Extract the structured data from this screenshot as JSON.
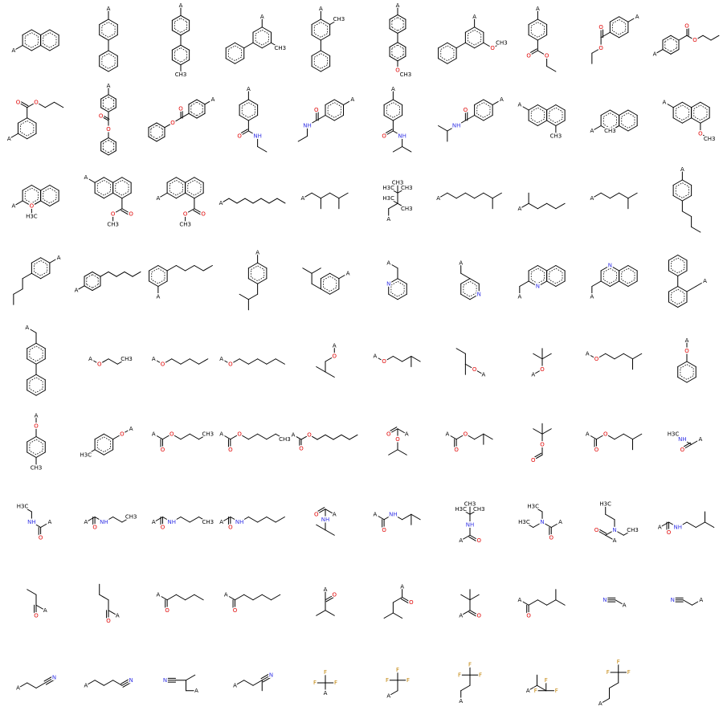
{
  "molecules": [
    {
      "labels": [
        "A"
      ]
    },
    {
      "labels": [
        "A"
      ]
    },
    {
      "labels": [
        "A",
        "CH3"
      ]
    },
    {
      "labels": [
        "A",
        "CH3"
      ]
    },
    {
      "labels": [
        "A",
        "CH3"
      ]
    },
    {
      "labels": [
        "A",
        "O",
        "CH3"
      ]
    },
    {
      "labels": [
        "A",
        "O",
        "CH3"
      ]
    },
    {
      "labels": [
        "A",
        "O",
        "O"
      ]
    },
    {
      "labels": [
        "A",
        "O",
        "O"
      ]
    },
    {
      "labels": [
        "A",
        "O",
        "O"
      ]
    },
    {
      "labels": [
        "A",
        "O",
        "O"
      ]
    },
    {
      "labels": [
        "A",
        "O",
        "O"
      ]
    },
    {
      "labels": [
        "A",
        "O",
        "O"
      ]
    },
    {
      "labels": [
        "A",
        "O",
        "NH"
      ]
    },
    {
      "labels": [
        "A",
        "O",
        "NH"
      ]
    },
    {
      "labels": [
        "A",
        "O",
        "NH"
      ]
    },
    {
      "labels": [
        "A",
        "O",
        "NH"
      ]
    },
    {
      "labels": [
        "A",
        "CH3"
      ]
    },
    {
      "labels": [
        "A",
        "CH3"
      ]
    },
    {
      "labels": [
        "A",
        "O",
        "CH3"
      ]
    },
    {
      "labels": [
        "A",
        "O",
        "H3C"
      ]
    },
    {
      "labels": [
        "A",
        "O",
        "O",
        "CH3"
      ]
    },
    {
      "labels": [
        "A",
        "O",
        "O",
        "CH3"
      ]
    },
    {
      "labels": [
        "A"
      ]
    },
    {
      "labels": [
        "A"
      ]
    },
    {
      "labels": [
        "A",
        "H3C",
        "CH3",
        "H3C",
        "CH3",
        "CH3"
      ]
    },
    {
      "labels": [
        "A"
      ]
    },
    {
      "labels": [
        "A"
      ]
    },
    {
      "labels": [
        "A"
      ]
    },
    {
      "labels": [
        "A"
      ]
    },
    {
      "labels": [
        "A"
      ]
    },
    {
      "labels": [
        "A"
      ]
    },
    {
      "labels": [
        "A"
      ]
    },
    {
      "labels": [
        "A"
      ]
    },
    {
      "labels": [
        "A"
      ]
    },
    {
      "labels": [
        "A",
        "N"
      ]
    },
    {
      "labels": [
        "A",
        "N"
      ]
    },
    {
      "labels": [
        "A",
        "N"
      ]
    },
    {
      "labels": [
        "A",
        "N"
      ]
    },
    {
      "labels": [
        "A"
      ]
    },
    {
      "labels": [
        "A"
      ]
    },
    {
      "labels": [
        "A",
        "O",
        "CH3"
      ]
    },
    {
      "labels": [
        "A",
        "O"
      ]
    },
    {
      "labels": [
        "A",
        "O"
      ]
    },
    {
      "labels": [
        "A",
        "O"
      ]
    },
    {
      "labels": [
        "A",
        "O"
      ]
    },
    {
      "labels": [
        "A",
        "O"
      ]
    },
    {
      "labels": [
        "A",
        "O"
      ]
    },
    {
      "labels": [
        "A",
        "O"
      ]
    },
    {
      "labels": [
        "A",
        "O"
      ]
    },
    {
      "labels": [
        "A",
        "O",
        "CH3"
      ]
    },
    {
      "labels": [
        "A",
        "O",
        "H3C"
      ]
    },
    {
      "labels": [
        "A",
        "O",
        "O",
        "CH3"
      ]
    },
    {
      "labels": [
        "A",
        "O",
        "O",
        "CH3"
      ]
    },
    {
      "labels": [
        "A",
        "O",
        "O"
      ]
    },
    {
      "labels": [
        "A",
        "O",
        "O"
      ]
    },
    {
      "labels": [
        "A",
        "O",
        "O"
      ]
    },
    {
      "labels": [
        "A",
        "O",
        "O"
      ]
    },
    {
      "labels": [
        "A",
        "O",
        "O"
      ]
    },
    {
      "labels": [
        "H3C",
        "NH",
        "O",
        "A"
      ]
    },
    {
      "labels": [
        "H3C",
        "NH",
        "O",
        "A"
      ]
    },
    {
      "labels": [
        "A",
        "O",
        "NH",
        "CH3"
      ]
    },
    {
      "labels": [
        "A",
        "O",
        "NH",
        "CH3"
      ]
    },
    {
      "labels": [
        "A",
        "O",
        "NH"
      ]
    },
    {
      "labels": [
        "A",
        "O",
        "NH"
      ]
    },
    {
      "labels": [
        "A",
        "O",
        "NH"
      ]
    },
    {
      "labels": [
        "A",
        "O",
        "NH",
        "H3C",
        "CH3",
        "CH3"
      ]
    },
    {
      "labels": [
        "H3C",
        "N",
        "H3C",
        "O",
        "A"
      ]
    },
    {
      "labels": [
        "H3C",
        "N",
        "CH3",
        "O",
        "A"
      ]
    },
    {
      "labels": [
        "A",
        "O",
        "NH"
      ]
    },
    {
      "labels": [
        "A",
        "O"
      ]
    },
    {
      "labels": [
        "A",
        "O"
      ]
    },
    {
      "labels": [
        "A",
        "O"
      ]
    },
    {
      "labels": [
        "A",
        "O"
      ]
    },
    {
      "labels": [
        "A",
        "O"
      ]
    },
    {
      "labels": [
        "A",
        "O"
      ]
    },
    {
      "labels": [
        "A",
        "O"
      ]
    },
    {
      "labels": [
        "A",
        "O"
      ]
    },
    {
      "labels": [
        "N",
        "A"
      ]
    },
    {
      "labels": [
        "N",
        "A"
      ]
    },
    {
      "labels": [
        "A",
        "N"
      ]
    },
    {
      "labels": [
        "A",
        "N"
      ]
    },
    {
      "labels": [
        "N",
        "A"
      ]
    },
    {
      "labels": [
        "A",
        "N"
      ]
    },
    {
      "labels": [
        "F",
        "F",
        "A",
        "F"
      ]
    },
    {
      "labels": [
        "A",
        "F",
        "F",
        "F"
      ]
    },
    {
      "labels": [
        "A",
        "F",
        "F",
        "F"
      ]
    },
    {
      "labels": [
        "A",
        "F",
        "F",
        "F"
      ]
    },
    {
      "labels": [
        "A",
        "F",
        "F",
        "F"
      ]
    }
  ]
}
